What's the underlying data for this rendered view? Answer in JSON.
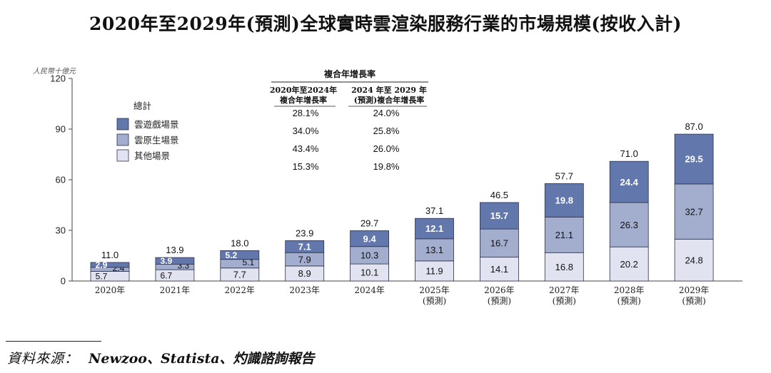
{
  "title": "2020年至2029年(預測)全球實時雲渲染服務行業的市場規模(按收入計)",
  "unit_label": "人民幣十億元",
  "source": {
    "label": "資料來源：",
    "value": "Newzoo、Statista、灼識諮詢報告"
  },
  "colors": {
    "cloud_gaming": "#6278ad",
    "cloud_native": "#a3aece",
    "other": "#e1e4f0",
    "text_dark": "#222222"
  },
  "legend": {
    "title": "總計",
    "items": [
      {
        "label": "雲遊戲場景",
        "color_key": "cloud_gaming"
      },
      {
        "label": "雲原生場景",
        "color_key": "cloud_native"
      },
      {
        "label": "其他場景",
        "color_key": "other"
      }
    ]
  },
  "cagr_table": {
    "title": "複合年增長率",
    "col1_header": [
      "2020年至2024年",
      "複合年增長率"
    ],
    "col2_header": [
      "2024 年至 2029 年",
      "(預測)複合年增長率"
    ],
    "rows": [
      [
        "28.1%",
        "24.0%"
      ],
      [
        "34.0%",
        "25.8%"
      ],
      [
        "43.4%",
        "26.0%"
      ],
      [
        "15.3%",
        "19.8%"
      ]
    ]
  },
  "chart_data": {
    "type": "bar",
    "stacked": true,
    "categories": [
      [
        "2020年"
      ],
      [
        "2021年"
      ],
      [
        "2022年"
      ],
      [
        "2023年"
      ],
      [
        "2024年"
      ],
      [
        "2025年",
        "(預測)"
      ],
      [
        "2026年",
        "(預測)"
      ],
      [
        "2027年",
        "(預測)"
      ],
      [
        "2028年",
        "(預測)"
      ],
      [
        "2029年",
        "(預測)"
      ]
    ],
    "totals": [
      11.0,
      13.9,
      18.0,
      23.9,
      29.7,
      37.1,
      46.5,
      57.7,
      71.0,
      87.0
    ],
    "series": [
      {
        "name": "其他場景",
        "color_key": "other",
        "values": [
          5.7,
          6.7,
          7.7,
          8.9,
          10.1,
          11.9,
          14.1,
          16.8,
          20.2,
          24.8
        ]
      },
      {
        "name": "雲原生場景",
        "color_key": "cloud_native",
        "values": [
          2.4,
          3.3,
          5.1,
          7.9,
          10.3,
          13.1,
          16.7,
          21.1,
          26.3,
          32.7
        ]
      },
      {
        "name": "雲遊戲場景",
        "color_key": "cloud_gaming",
        "values": [
          2.9,
          3.9,
          5.2,
          7.1,
          9.4,
          12.1,
          15.7,
          19.8,
          24.4,
          29.5
        ]
      }
    ],
    "ylim": [
      0,
      120
    ],
    "yticks": [
      0,
      30,
      60,
      90,
      120
    ],
    "grid": false
  }
}
